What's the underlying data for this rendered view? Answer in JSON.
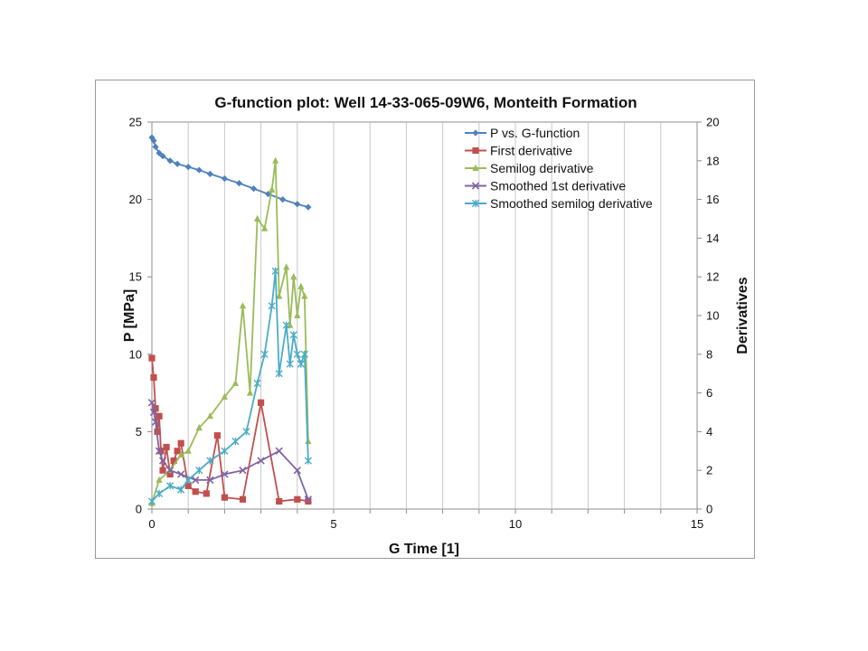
{
  "chart_data": {
    "type": "scatter",
    "title": "G-function plot: Well 14-33-065-09W6, Monteith Formation",
    "xlabel": "G Time [1]",
    "ylabel": "P [MPa]",
    "y2label": "Derivatives",
    "xlim": [
      0,
      15
    ],
    "ylim": [
      0,
      25
    ],
    "y2lim": [
      0,
      20
    ],
    "x_ticks": [
      "0",
      "5",
      "10",
      "15"
    ],
    "y_ticks": [
      "0",
      "5",
      "10",
      "15",
      "20",
      "25"
    ],
    "y2_ticks": [
      "0",
      "2",
      "4",
      "6",
      "8",
      "10",
      "12",
      "14",
      "16",
      "18",
      "20"
    ],
    "grid": "vertical",
    "legend_position": "top-right",
    "series": [
      {
        "name": "P vs. G-function",
        "axis": "left",
        "marker": "diamond",
        "color": "#4f81bd",
        "x": [
          0,
          0.05,
          0.1,
          0.2,
          0.3,
          0.5,
          0.7,
          1.0,
          1.3,
          1.6,
          2.0,
          2.4,
          2.8,
          3.2,
          3.6,
          4.0,
          4.3
        ],
        "y": [
          24.0,
          23.8,
          23.4,
          23.0,
          22.8,
          22.5,
          22.3,
          22.1,
          21.9,
          21.65,
          21.35,
          21.05,
          20.7,
          20.35,
          20.0,
          19.7,
          19.5
        ]
      },
      {
        "name": "First derivative",
        "axis": "right",
        "marker": "square",
        "color": "#c0504d",
        "x": [
          0,
          0.05,
          0.1,
          0.15,
          0.2,
          0.25,
          0.3,
          0.4,
          0.5,
          0.6,
          0.7,
          0.8,
          1.0,
          1.2,
          1.5,
          1.8,
          2.0,
          2.5,
          3.0,
          3.5,
          4.0,
          4.3
        ],
        "y": [
          7.8,
          6.8,
          5.2,
          4.0,
          4.8,
          3.0,
          2.0,
          3.2,
          1.8,
          2.5,
          3.0,
          3.4,
          1.2,
          0.9,
          0.8,
          3.8,
          0.6,
          0.5,
          5.5,
          0.4,
          0.5,
          0.4
        ]
      },
      {
        "name": "Semilog derivative",
        "axis": "right",
        "marker": "triangle",
        "color": "#9bbb59",
        "x": [
          0,
          0.2,
          0.5,
          0.8,
          1.0,
          1.3,
          1.6,
          2.0,
          2.3,
          2.5,
          2.7,
          2.9,
          3.1,
          3.3,
          3.4,
          3.5,
          3.7,
          3.8,
          3.9,
          4.0,
          4.1,
          4.2,
          4.3
        ],
        "y": [
          0.3,
          1.5,
          2.0,
          2.8,
          3.0,
          4.2,
          4.8,
          5.8,
          6.5,
          10.5,
          6.0,
          15.0,
          14.5,
          16.5,
          18.0,
          11.0,
          12.5,
          9.5,
          12.0,
          10.0,
          11.5,
          11.0,
          3.5
        ]
      },
      {
        "name": "Smoothed 1st derivative",
        "axis": "right",
        "marker": "x",
        "color": "#8064a2",
        "x": [
          0,
          0.05,
          0.1,
          0.2,
          0.3,
          0.5,
          0.8,
          1.2,
          1.6,
          2.0,
          2.5,
          3.0,
          3.5,
          4.0,
          4.3
        ],
        "y": [
          5.5,
          5.0,
          4.5,
          3.0,
          2.5,
          2.0,
          1.8,
          1.5,
          1.5,
          1.8,
          2.0,
          2.5,
          3.0,
          2.0,
          0.5
        ]
      },
      {
        "name": "Smoothed semilog derivative",
        "axis": "right",
        "marker": "star",
        "color": "#4bacc6",
        "x": [
          0,
          0.2,
          0.5,
          0.8,
          1.0,
          1.3,
          1.6,
          2.0,
          2.3,
          2.6,
          2.9,
          3.1,
          3.3,
          3.4,
          3.5,
          3.7,
          3.8,
          3.9,
          4.0,
          4.1,
          4.2,
          4.3
        ],
        "y": [
          0.4,
          0.8,
          1.2,
          1.0,
          1.5,
          2.0,
          2.5,
          3.0,
          3.5,
          4.0,
          6.5,
          8.0,
          10.5,
          12.3,
          7.0,
          9.5,
          7.5,
          9.0,
          8.0,
          7.5,
          8.0,
          2.5
        ]
      }
    ]
  }
}
